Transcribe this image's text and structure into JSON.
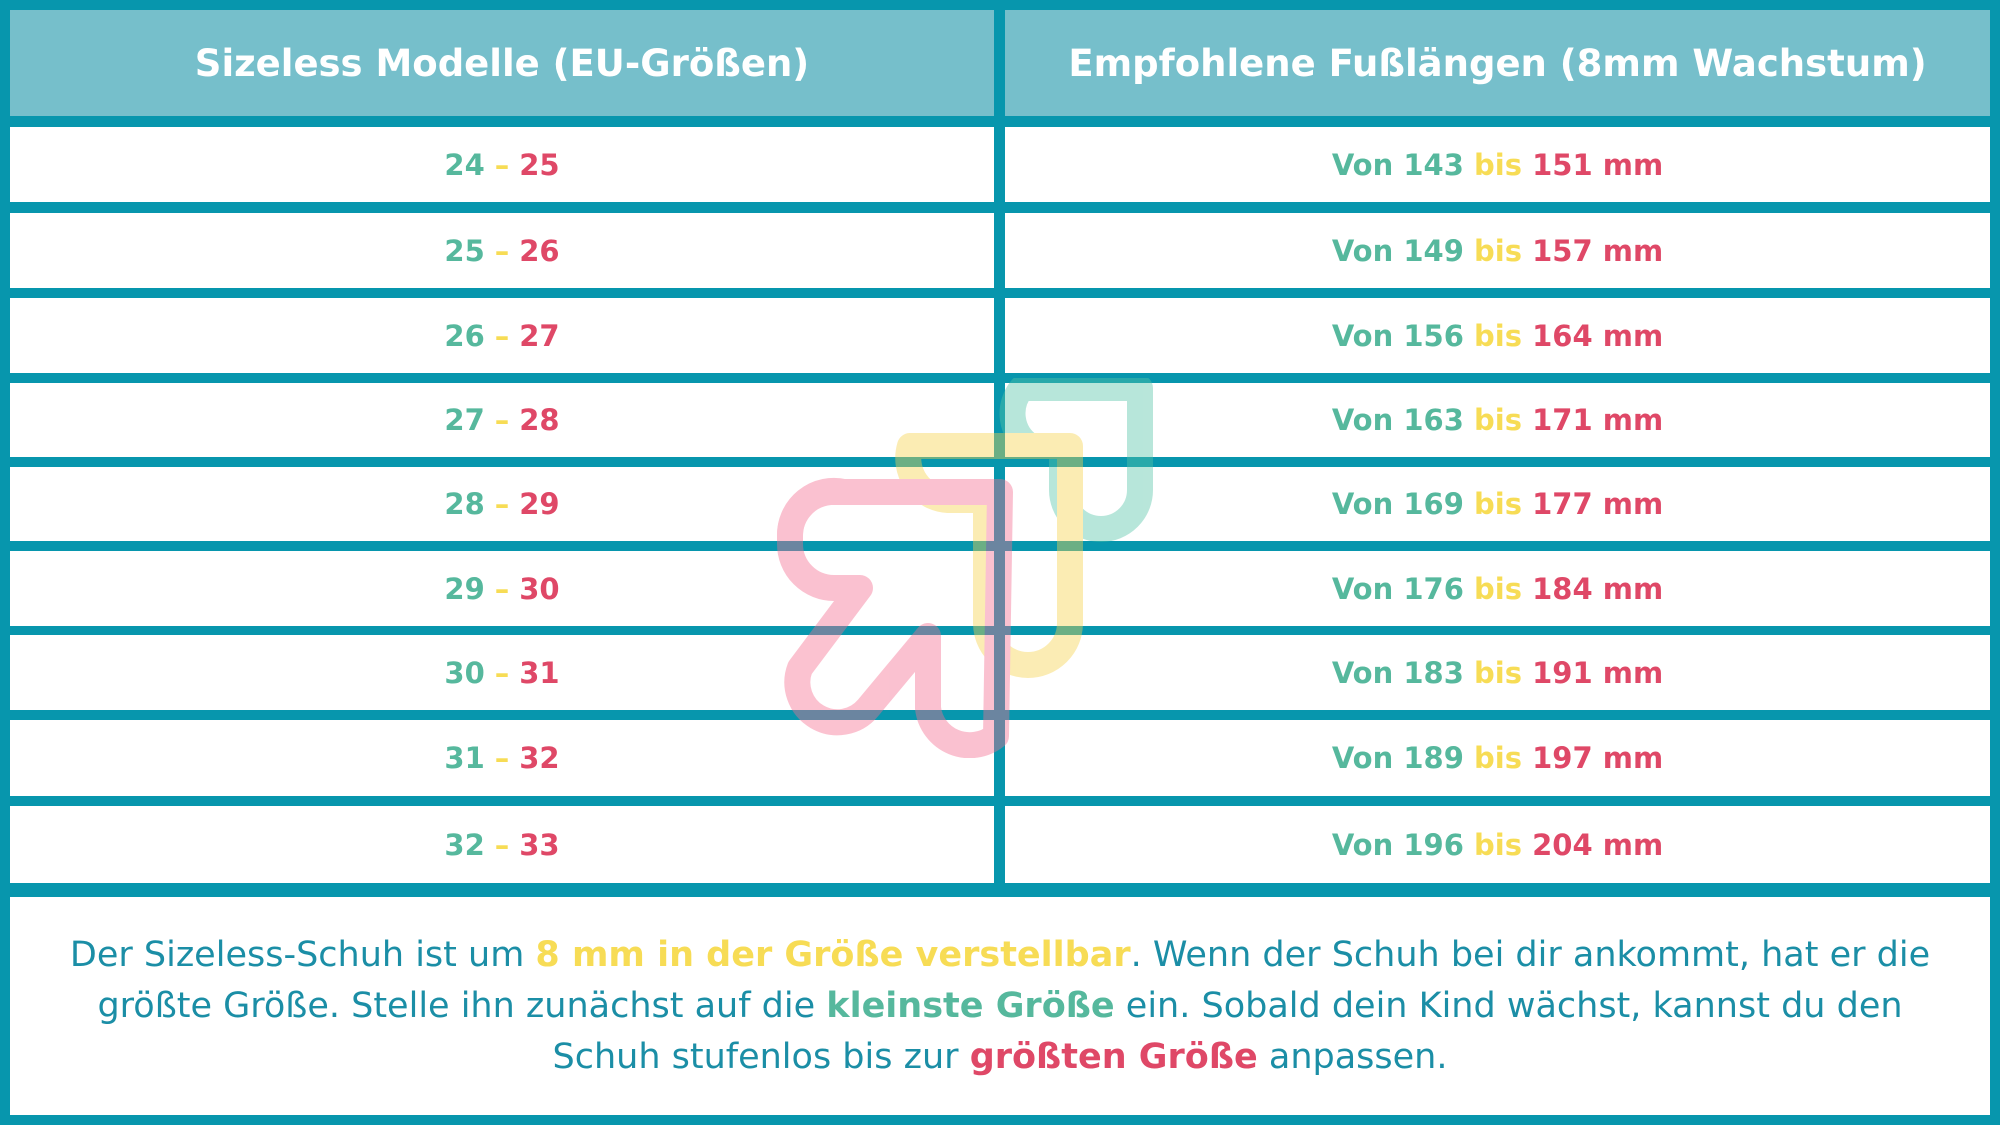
{
  "header": {
    "col1": "Sizeless Modelle (EU-Größen)",
    "col2": "Empfohlene Fußlängen (8mm Wachstum)"
  },
  "rows": [
    {
      "size_from": "24",
      "sep": "–",
      "size_to": "25",
      "von": "Von",
      "mm_from": "143",
      "bis": "bis",
      "mm_to": "151",
      "unit": "mm"
    },
    {
      "size_from": "25",
      "sep": "–",
      "size_to": "26",
      "von": "Von",
      "mm_from": "149",
      "bis": "bis",
      "mm_to": "157",
      "unit": "mm"
    },
    {
      "size_from": "26",
      "sep": "–",
      "size_to": "27",
      "von": "Von",
      "mm_from": "156",
      "bis": "bis",
      "mm_to": "164",
      "unit": "mm"
    },
    {
      "size_from": "27",
      "sep": "–",
      "size_to": "28",
      "von": "Von",
      "mm_from": "163",
      "bis": "bis",
      "mm_to": "171",
      "unit": "mm"
    },
    {
      "size_from": "28",
      "sep": "–",
      "size_to": "29",
      "von": "Von",
      "mm_from": "169",
      "bis": "bis",
      "mm_to": "177",
      "unit": "mm"
    },
    {
      "size_from": "29",
      "sep": "–",
      "size_to": "30",
      "von": "Von",
      "mm_from": "176",
      "bis": "bis",
      "mm_to": "184",
      "unit": "mm"
    },
    {
      "size_from": "30",
      "sep": "–",
      "size_to": "31",
      "von": "Von",
      "mm_from": "183",
      "bis": "bis",
      "mm_to": "191",
      "unit": "mm"
    },
    {
      "size_from": "31",
      "sep": "–",
      "size_to": "32",
      "von": "Von",
      "mm_from": "189",
      "bis": "bis",
      "mm_to": "197",
      "unit": "mm"
    },
    {
      "size_from": "32",
      "sep": "–",
      "size_to": "33",
      "von": "Von",
      "mm_from": "196",
      "bis": "bis",
      "mm_to": "204",
      "unit": "mm"
    }
  ],
  "note": {
    "t1": "Der Sizeless-Schuh ist um ",
    "h1": "8 mm in der Größe verstellbar",
    "t2": ". Wenn der Schuh bei dir ankommt, hat er die größte Größe. Stelle ihn zunächst auf die ",
    "h2": "kleinste Größe",
    "t3": " ein. Sobald dein Kind wächst, kannst du den Schuh stufenlos bis zur ",
    "h3": "größten Größe",
    "t4": " anpassen."
  },
  "colors": {
    "frame": "#0796ad",
    "header_bg": "#76bfcb",
    "green": "#56b89d",
    "yellow": "#f7dc55",
    "red": "#df4867",
    "note_text": "#1b8ea6"
  },
  "icons": {
    "watermark": "sizeless-heart-arrow-logo-icon"
  }
}
